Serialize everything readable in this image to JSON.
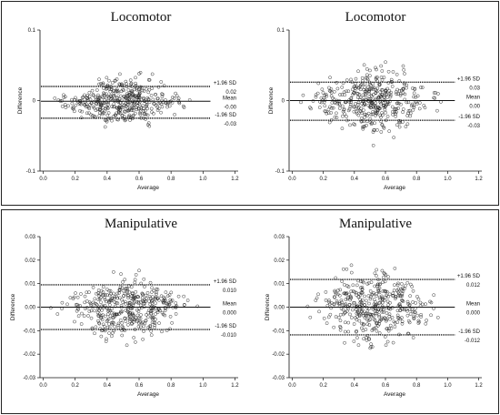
{
  "chart_data": [
    {
      "type": "scatter",
      "title": "Locomotor",
      "xlabel": "Average",
      "ylabel": "Difference",
      "xlim": [
        -0.02,
        1.22
      ],
      "ylim": [
        -0.1,
        0.1
      ],
      "xticks": [
        "0.0",
        "0.2",
        "0.4",
        "0.6",
        "0.8",
        "1.0",
        "1.2"
      ],
      "yticks": [
        "0.1",
        "0",
        "-0.1"
      ],
      "ytick_values": [
        0.1,
        0,
        -0.1
      ],
      "x_range": [
        0.02,
        1.0
      ],
      "y_spread": 0.058,
      "lines": {
        "upper": 0.02,
        "mean": -0.001,
        "lower": -0.025
      },
      "labels": {
        "upper_name": "+1.96 SD",
        "upper_value": "0.02",
        "mean_name": "Mean",
        "mean_value": "-0.00",
        "lower_name": "-1.96 SD",
        "lower_value": "-0.03"
      }
    },
    {
      "type": "scatter",
      "title": "Locomotor",
      "xlabel": "Average",
      "ylabel": "Difference",
      "xlim": [
        -0.02,
        1.22
      ],
      "ylim": [
        -0.1,
        0.1
      ],
      "xticks": [
        "0.0",
        "0.2",
        "0.4",
        "0.6",
        "0.8",
        "1.0",
        "1.2"
      ],
      "yticks": [
        "0.1",
        "0",
        "-0.1"
      ],
      "ytick_values": [
        0.1,
        0,
        -0.1
      ],
      "x_range": [
        0.02,
        1.0
      ],
      "y_spread": 0.075,
      "lines": {
        "upper": 0.026,
        "mean": 0.0,
        "lower": -0.028
      },
      "labels": {
        "upper_name": "+1.96 SD",
        "upper_value": "0.03",
        "mean_name": "Mean",
        "mean_value": "0.00",
        "lower_name": "-1.96 SD",
        "lower_value": "-0.03"
      }
    },
    {
      "type": "scatter",
      "title": "Manipulative",
      "xlabel": "Average",
      "ylabel": "Difference",
      "xlim": [
        -0.02,
        1.22
      ],
      "ylim": [
        -0.03,
        0.03
      ],
      "xticks": [
        "0.0",
        "0.2",
        "0.4",
        "0.6",
        "0.8",
        "1.0",
        "1.2"
      ],
      "yticks": [
        "0.03",
        "0.02",
        "0.01",
        "0.00",
        "-0.01",
        "-0.02",
        "-0.03"
      ],
      "ytick_values": [
        0.03,
        0.02,
        0.01,
        0.0,
        -0.01,
        -0.02,
        -0.03
      ],
      "x_range": [
        0.02,
        1.0
      ],
      "y_spread": 0.022,
      "lines": {
        "upper": 0.0095,
        "mean": 0.0,
        "lower": -0.0095
      },
      "labels": {
        "upper_name": "+1.96 SD",
        "upper_value": "0.010",
        "mean_name": "Mean",
        "mean_value": "0.000",
        "lower_name": "-1.96 SD",
        "lower_value": "-0.010"
      }
    },
    {
      "type": "scatter",
      "title": "Manipulative",
      "xlabel": "Average",
      "ylabel": "Difference",
      "xlim": [
        -0.02,
        1.22
      ],
      "ylim": [
        -0.03,
        0.03
      ],
      "xticks": [
        "0.0",
        "0.2",
        "0.4",
        "0.6",
        "0.8",
        "1.0",
        "1.2"
      ],
      "yticks": [
        "0.03",
        "0.02",
        "0.01",
        "0.00",
        "-0.01",
        "-0.02",
        "-0.03"
      ],
      "ytick_values": [
        0.03,
        0.02,
        0.01,
        0.0,
        -0.01,
        -0.02,
        -0.03
      ],
      "x_range": [
        0.02,
        1.0
      ],
      "y_spread": 0.026,
      "lines": {
        "upper": 0.0118,
        "mean": 0.0,
        "lower": -0.0118
      },
      "labels": {
        "upper_name": "+1.96 SD",
        "upper_value": "0.012",
        "mean_name": "Mean",
        "mean_value": "0.000",
        "lower_name": "-1.96 SD",
        "lower_value": "-0.012"
      }
    }
  ]
}
